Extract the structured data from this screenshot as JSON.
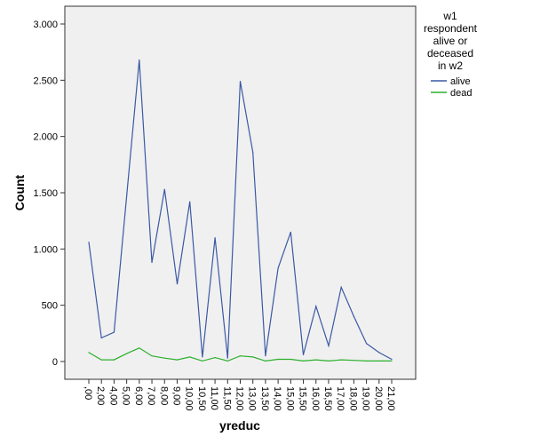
{
  "chart_data": {
    "type": "line",
    "xlabel": "yreduc",
    "ylabel": "Count",
    "ylim": [
      0,
      3000
    ],
    "yticks": [
      0,
      500,
      1000,
      1500,
      2000,
      2500,
      3000
    ],
    "ytick_labels": [
      "0",
      "500",
      "1.000",
      "1.500",
      "2.000",
      "2.500",
      "3.000"
    ],
    "categories": [
      ",00",
      "2,00",
      "4,00",
      "5,00",
      "6,00",
      "7,00",
      "8,00",
      "9,00",
      "10,00",
      "10,50",
      "11,00",
      "11,50",
      "12,00",
      "13,00",
      "13,50",
      "14,00",
      "15,00",
      "15,50",
      "16,00",
      "16,50",
      "17,00",
      "18,00",
      "19,00",
      "20,00",
      "21,00"
    ],
    "series": [
      {
        "name": "alive",
        "color": "#3a58a4",
        "values": [
          1060,
          210,
          260,
          1470,
          2680,
          880,
          1530,
          690,
          1420,
          40,
          1100,
          30,
          2490,
          1860,
          50,
          830,
          1150,
          60,
          490,
          140,
          660,
          400,
          160,
          80,
          20
        ]
      },
      {
        "name": "dead",
        "color": "#2ab02a",
        "values": [
          80,
          15,
          15,
          70,
          120,
          50,
          30,
          15,
          40,
          5,
          35,
          5,
          50,
          40,
          5,
          20,
          20,
          5,
          15,
          5,
          15,
          10,
          5,
          5,
          5
        ]
      }
    ],
    "grid": false,
    "legend": {
      "title": "w1 respondent alive or deceased in w2",
      "title_lines": [
        "w1",
        "respondent",
        "alive or",
        "deceased",
        "in w2"
      ],
      "placement": "right"
    }
  }
}
